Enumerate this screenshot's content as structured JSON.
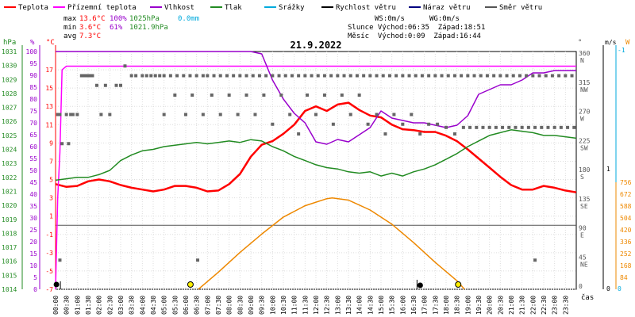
{
  "chart_data": {
    "type": "line",
    "title": "21.9.2022",
    "legend": [
      {
        "label": "Teplota",
        "color": "#ff0000"
      },
      {
        "label": "Přízemní teplota",
        "color": "#ff00ff"
      },
      {
        "label": "Vlhkost",
        "color": "#9900cc"
      },
      {
        "label": "Tlak",
        "color": "#228b22"
      },
      {
        "label": "Srážky",
        "color": "#00aadd"
      },
      {
        "label": "Rychlost větru",
        "color": "#000000"
      },
      {
        "label": "Náraz větru",
        "color": "#000080"
      },
      {
        "label": "Směr větru",
        "color": "#555555"
      }
    ],
    "stats": {
      "max": {
        "label": "max",
        "temp": "13.6°C",
        "hum": "100%",
        "press": "1025hPa",
        "rain": "0.0mm"
      },
      "min": {
        "label": "min",
        "temp": "3.6°C",
        "hum": "61%",
        "press": "1021.9hPa"
      },
      "avg": {
        "label": "avg",
        "temp": "7.3°C"
      },
      "ws": "WS:0m/s",
      "wg": "WG:0m/s",
      "sun": "Slunce Východ:06:35  Západ:18:51",
      "moon": "Měsíc  Východ:0:09  Západ:16:44"
    },
    "axes": {
      "press": {
        "unit": "hPa",
        "ticks": [
          "1014",
          "1015",
          "1016",
          "1017",
          "1018",
          "1019",
          "1020",
          "1021",
          "1022",
          "1023",
          "1024",
          "1025",
          "1026",
          "1027",
          "1028",
          "1029",
          "1030",
          "1031"
        ]
      },
      "hum": {
        "unit": "%",
        "ticks": [
          "0",
          "5",
          "10",
          "15",
          "20",
          "25",
          "30",
          "35",
          "40",
          "45",
          "50",
          "55",
          "60",
          "65",
          "70",
          "75",
          "80",
          "85",
          "90",
          "95",
          "100"
        ]
      },
      "temp": {
        "unit": "°C",
        "ticks": [
          "-7",
          "-5",
          "-3",
          "-1",
          "1",
          "3",
          "5",
          "7",
          "9",
          "11",
          "13",
          "15",
          "17"
        ],
        "ylim": [
          -7,
          19
        ]
      },
      "dir": {
        "unit": "°",
        "ticks": [
          "0",
          "45\nNE",
          "90\nE",
          "135\nSE",
          "180\nS",
          "225\nSW",
          "270\nW",
          "315\nNW",
          "360\nN"
        ]
      },
      "ws": {
        "unit": "m/s",
        "ticks": [
          "0",
          "1",
          "-1"
        ]
      },
      "rad": {
        "unit": "W",
        "ticks": [
          "0",
          "84",
          "168",
          "252",
          "336",
          "420",
          "504",
          "588",
          "672",
          "756"
        ]
      },
      "time_label": "čas",
      "x_ticks": [
        "00:00",
        "00:30",
        "01:00",
        "01:30",
        "02:00",
        "02:30",
        "03:00",
        "03:30",
        "04:00",
        "04:30",
        "05:00",
        "05:30",
        "06:00",
        "06:30",
        "07:00",
        "07:30",
        "08:00",
        "08:30",
        "09:00",
        "09:30",
        "10:00",
        "10:30",
        "11:00",
        "11:30",
        "12:00",
        "12:30",
        "13:00",
        "13:30",
        "14:00",
        "14:30",
        "15:00",
        "15:30",
        "16:00",
        "16:30",
        "17:00",
        "17:30",
        "18:00",
        "18:30",
        "19:00",
        "19:30",
        "20:00",
        "20:30",
        "21:00",
        "21:30",
        "22:00",
        "22:30",
        "23:00",
        "23:30"
      ]
    },
    "series": [
      {
        "name": "Teplota",
        "unit": "°C",
        "color": "#ff0000",
        "x": [
          0,
          0.5,
          1,
          1.5,
          2,
          2.5,
          3,
          3.5,
          4,
          4.5,
          5,
          5.5,
          6,
          6.5,
          7,
          7.5,
          8,
          8.5,
          9,
          9.5,
          10,
          10.5,
          11,
          11.5,
          12,
          12.5,
          13,
          13.5,
          14,
          14.5,
          15,
          15.5,
          16,
          16.5,
          17,
          17.5,
          18,
          18.5,
          19,
          19.5,
          20,
          20.5,
          21,
          21.5,
          22,
          22.5,
          23,
          23.5,
          24
        ],
        "values": [
          4.5,
          4.2,
          4.3,
          4.8,
          5,
          4.8,
          4.4,
          4.1,
          3.9,
          3.7,
          3.9,
          4.3,
          4.3,
          4.1,
          3.7,
          3.8,
          4.5,
          5.6,
          7.5,
          8.8,
          9.2,
          10,
          11,
          12.5,
          13,
          12.5,
          13.2,
          13.4,
          12.6,
          12,
          11.8,
          11,
          10.5,
          10.4,
          10.2,
          10.2,
          9.8,
          9.2,
          8.3,
          7.3,
          6.3,
          5.3,
          4.4,
          3.9,
          3.9,
          4.3,
          4.1,
          3.8,
          3.6
        ]
      },
      {
        "name": "Přízemní teplota",
        "unit": "°C",
        "color": "#ff00ff",
        "x": [
          0,
          0.1,
          0.2,
          0.3,
          0.5,
          24
        ],
        "values": [
          -7,
          3,
          8,
          17,
          17.4,
          17.4
        ]
      },
      {
        "name": "Vlhkost",
        "unit": "%",
        "color": "#9900cc",
        "x": [
          0,
          0.5,
          1,
          2,
          3,
          4,
          5,
          6,
          7,
          8,
          9,
          9.5,
          10,
          10.5,
          11,
          11.5,
          12,
          12.5,
          13,
          13.5,
          14,
          14.5,
          15,
          15.5,
          16,
          16.5,
          17,
          17.5,
          18,
          18.5,
          19,
          19.5,
          20,
          20.5,
          21,
          21.5,
          22,
          22.5,
          23,
          23.5,
          24
        ],
        "values": [
          100,
          100,
          100,
          100,
          100,
          100,
          100,
          100,
          100,
          100,
          100,
          99,
          88,
          80,
          74,
          70,
          62,
          61,
          63,
          62,
          65,
          68,
          75,
          72,
          71,
          70,
          70,
          69,
          68,
          69,
          73,
          82,
          84,
          86,
          86,
          88,
          91,
          91,
          92,
          92,
          92
        ],
        "scale": "hum"
      },
      {
        "name": "Tlak",
        "unit": "hPa",
        "color": "#228b22",
        "x": [
          0,
          0.5,
          1,
          1.5,
          2,
          2.5,
          3,
          3.5,
          4,
          4.5,
          5,
          5.5,
          6,
          6.5,
          7,
          7.5,
          8,
          8.5,
          9,
          9.5,
          10,
          10.5,
          11,
          11.5,
          12,
          12.5,
          13,
          13.5,
          14,
          14.5,
          15,
          15.5,
          16,
          16.5,
          17,
          17.5,
          18,
          18.5,
          19,
          19.5,
          20,
          20.5,
          21,
          21.5,
          22,
          22.5,
          23,
          23.5,
          24
        ],
        "values": [
          1021.8,
          1021.9,
          1022,
          1022,
          1022.2,
          1022.5,
          1023.2,
          1023.6,
          1023.9,
          1024,
          1024.2,
          1024.3,
          1024.4,
          1024.5,
          1024.4,
          1024.5,
          1024.6,
          1024.5,
          1024.7,
          1024.6,
          1024.2,
          1023.9,
          1023.5,
          1023.2,
          1022.9,
          1022.7,
          1022.6,
          1022.4,
          1022.3,
          1022.4,
          1022.1,
          1022.3,
          1022.1,
          1022.4,
          1022.6,
          1022.9,
          1023.3,
          1023.7,
          1024.2,
          1024.6,
          1025,
          1025.2,
          1025.4,
          1025.3,
          1025.2,
          1025,
          1025,
          1024.9,
          1024.8
        ],
        "scale": "press"
      },
      {
        "name": "Solar",
        "unit": "W",
        "color": "#ee8800",
        "x": [
          6.583,
          7.5,
          8.5,
          9.5,
          10.5,
          11.5,
          12.5,
          12.75,
          13.5,
          14.5,
          15.5,
          16.5,
          17.5,
          18.5,
          18.85
        ],
        "values": [
          0,
          120,
          260,
          390,
          510,
          590,
          640,
          645,
          630,
          560,
          460,
          330,
          190,
          60,
          0
        ],
        "scale": "rad"
      }
    ],
    "wind_dir_points": [
      [
        0.1,
        270
      ],
      [
        0.2,
        270
      ],
      [
        0.5,
        270
      ],
      [
        0.7,
        270
      ],
      [
        0.8,
        270
      ],
      [
        1,
        270
      ],
      [
        1.2,
        330
      ],
      [
        1.3,
        330
      ],
      [
        1.4,
        330
      ],
      [
        1.5,
        330
      ],
      [
        1.6,
        330
      ],
      [
        1.7,
        330
      ],
      [
        1.9,
        315
      ],
      [
        2.1,
        270
      ],
      [
        2.3,
        315
      ],
      [
        2.5,
        270
      ],
      [
        2.8,
        315
      ],
      [
        3,
        315
      ],
      [
        3.2,
        345
      ],
      [
        3.5,
        330
      ],
      [
        3.7,
        330
      ],
      [
        4,
        330
      ],
      [
        4.2,
        330
      ],
      [
        4.4,
        330
      ],
      [
        4.6,
        330
      ],
      [
        4.8,
        330
      ],
      [
        5,
        330
      ],
      [
        5.3,
        330
      ],
      [
        5.6,
        330
      ],
      [
        5.9,
        330
      ],
      [
        6.2,
        330
      ],
      [
        6.5,
        330
      ],
      [
        6.8,
        330
      ],
      [
        7,
        330
      ],
      [
        7.3,
        330
      ],
      [
        7.6,
        330
      ],
      [
        7.9,
        330
      ],
      [
        8.2,
        330
      ],
      [
        8.5,
        330
      ],
      [
        8.8,
        330
      ],
      [
        9.1,
        330
      ],
      [
        9.4,
        330
      ],
      [
        9.7,
        330
      ],
      [
        10,
        330
      ],
      [
        10.3,
        330
      ],
      [
        10.6,
        330
      ],
      [
        10.9,
        330
      ],
      [
        11.2,
        330
      ],
      [
        11.5,
        330
      ],
      [
        11.8,
        330
      ],
      [
        12.1,
        330
      ],
      [
        12.4,
        330
      ],
      [
        12.7,
        330
      ],
      [
        13,
        330
      ],
      [
        13.3,
        330
      ],
      [
        13.6,
        330
      ],
      [
        13.9,
        330
      ],
      [
        14.2,
        330
      ],
      [
        14.5,
        330
      ],
      [
        14.8,
        330
      ],
      [
        15.1,
        330
      ],
      [
        15.4,
        330
      ],
      [
        15.7,
        330
      ],
      [
        16,
        330
      ],
      [
        16.3,
        330
      ],
      [
        16.6,
        330
      ],
      [
        16.9,
        330
      ],
      [
        17.2,
        330
      ],
      [
        17.5,
        330
      ],
      [
        17.8,
        330
      ],
      [
        18.1,
        330
      ],
      [
        18.4,
        330
      ],
      [
        18.7,
        330
      ],
      [
        19,
        330
      ],
      [
        19.3,
        330
      ],
      [
        19.6,
        330
      ],
      [
        19.9,
        330
      ],
      [
        20.2,
        330
      ],
      [
        20.5,
        330
      ],
      [
        20.8,
        330
      ],
      [
        21.1,
        330
      ],
      [
        21.4,
        330
      ],
      [
        21.7,
        330
      ],
      [
        22,
        330
      ],
      [
        22.3,
        330
      ],
      [
        22.6,
        330
      ],
      [
        22.9,
        330
      ],
      [
        23.2,
        330
      ],
      [
        23.5,
        330
      ],
      [
        23.8,
        330
      ],
      [
        5,
        270
      ],
      [
        5.5,
        300
      ],
      [
        6,
        270
      ],
      [
        6.3,
        300
      ],
      [
        6.8,
        270
      ],
      [
        7.2,
        300
      ],
      [
        7.6,
        270
      ],
      [
        8,
        300
      ],
      [
        8.4,
        270
      ],
      [
        8.8,
        300
      ],
      [
        9.2,
        270
      ],
      [
        9.6,
        300
      ],
      [
        10,
        255
      ],
      [
        10.4,
        300
      ],
      [
        10.8,
        270
      ],
      [
        11.2,
        240
      ],
      [
        11.6,
        300
      ],
      [
        12,
        270
      ],
      [
        12.4,
        300
      ],
      [
        12.8,
        255
      ],
      [
        13.2,
        300
      ],
      [
        13.6,
        270
      ],
      [
        14,
        300
      ],
      [
        14.4,
        255
      ],
      [
        14.8,
        270
      ],
      [
        15.2,
        240
      ],
      [
        15.6,
        270
      ],
      [
        16,
        255
      ],
      [
        16.4,
        270
      ],
      [
        16.8,
        240
      ],
      [
        17.2,
        255
      ],
      [
        17.6,
        255
      ],
      [
        18,
        250
      ],
      [
        18.4,
        240
      ],
      [
        18.8,
        250
      ],
      [
        19.1,
        250
      ],
      [
        19.4,
        250
      ],
      [
        19.7,
        250
      ],
      [
        20,
        250
      ],
      [
        20.3,
        250
      ],
      [
        20.6,
        250
      ],
      [
        20.9,
        250
      ],
      [
        21.2,
        250
      ],
      [
        21.5,
        250
      ],
      [
        21.8,
        250
      ],
      [
        22.1,
        250
      ],
      [
        22.4,
        250
      ],
      [
        22.7,
        250
      ],
      [
        23,
        250
      ],
      [
        23.3,
        250
      ],
      [
        23.6,
        250
      ],
      [
        23.9,
        250
      ],
      [
        6.55,
        45
      ],
      [
        22.1,
        45
      ],
      [
        0.2,
        45
      ],
      [
        0.6,
        225
      ],
      [
        0.3,
        225
      ]
    ],
    "markers": {
      "sunrise": 6.583,
      "sunset": 18.85,
      "moonrise": 0.15,
      "moonset": 16.733
    }
  }
}
